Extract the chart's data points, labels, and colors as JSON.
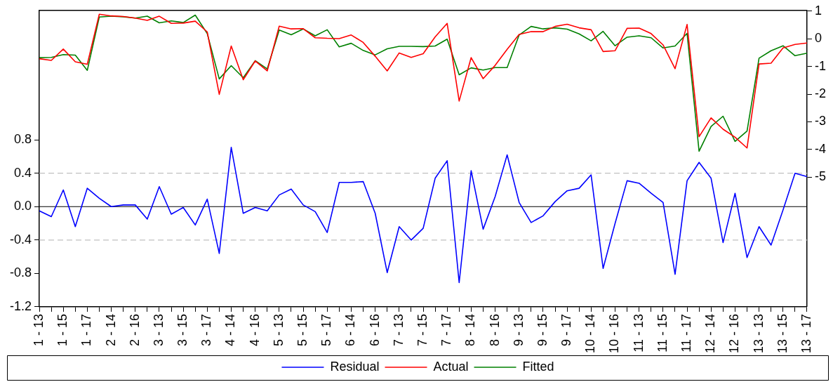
{
  "chart_data": {
    "type": "line",
    "categories": [
      "1 - 13",
      null,
      "1 - 15",
      null,
      "1 - 17",
      null,
      "2 - 14",
      null,
      "2 - 16",
      null,
      "3 - 13",
      null,
      "3 - 15",
      null,
      "3 - 17",
      null,
      "4 - 14",
      null,
      "4 - 16",
      null,
      "5 - 13",
      null,
      "5 - 15",
      null,
      "5 - 17",
      null,
      "6 - 14",
      null,
      "6 - 16",
      null,
      "7 - 13",
      null,
      "7 - 15",
      null,
      "7 - 17",
      null,
      "8 - 14",
      null,
      "8 - 16",
      null,
      "9 - 13",
      null,
      "9 - 15",
      null,
      "9 - 17",
      null,
      "10 - 14",
      null,
      "10 - 16",
      null,
      "11 - 13",
      null,
      "11 - 15",
      null,
      "11 - 17",
      null,
      "12 - 14",
      null,
      "12 - 16",
      null,
      "13 - 13",
      null,
      "13 - 15",
      null,
      "13 - 17"
    ],
    "series": [
      {
        "name": "Residual",
        "color": "#0000ff",
        "values": [
          -0.05,
          -0.12,
          0.2,
          -0.24,
          0.22,
          0.1,
          0.0,
          0.02,
          0.02,
          -0.15,
          0.24,
          -0.09,
          -0.01,
          -0.22,
          0.09,
          -0.56,
          0.71,
          -0.08,
          -0.01,
          -0.05,
          0.14,
          0.21,
          0.02,
          -0.06,
          -0.31,
          0.29,
          0.29,
          0.3,
          -0.08,
          -0.79,
          -0.24,
          -0.4,
          -0.26,
          0.34,
          0.55,
          -0.91,
          0.43,
          -0.27,
          0.12,
          0.62,
          0.05,
          -0.19,
          -0.11,
          0.06,
          0.19,
          0.22,
          0.38,
          -0.74,
          -0.2,
          0.31,
          0.28,
          0.16,
          0.05,
          -0.81,
          0.31,
          0.53,
          0.34,
          -0.43,
          0.16,
          -0.61,
          -0.24,
          -0.46,
          -0.04,
          0.4,
          0.36
        ]
      },
      {
        "name": "Actual",
        "color": "#ff0000",
        "axis": "y2",
        "values": [
          -0.72,
          -0.78,
          -0.37,
          -0.83,
          -0.92,
          0.89,
          0.83,
          0.81,
          0.75,
          0.67,
          0.82,
          0.56,
          0.57,
          0.64,
          0.25,
          -2.01,
          -0.26,
          -1.48,
          -0.8,
          -1.16,
          0.46,
          0.36,
          0.37,
          0.04,
          0.02,
          0.01,
          0.14,
          -0.13,
          -0.63,
          -1.16,
          -0.51,
          -0.67,
          -0.54,
          0.07,
          0.56,
          -2.25,
          -0.68,
          -1.44,
          -0.96,
          -0.38,
          0.16,
          0.26,
          0.26,
          0.45,
          0.53,
          0.4,
          0.33,
          -0.46,
          -0.43,
          0.38,
          0.39,
          0.19,
          -0.22,
          -1.08,
          0.52,
          -3.54,
          -2.86,
          -3.27,
          -3.56,
          -3.95,
          -0.91,
          -0.88,
          -0.33,
          -0.2,
          -0.15
        ]
      },
      {
        "name": "Fitted",
        "color": "#008000",
        "axis": "y2",
        "values": [
          -0.68,
          -0.67,
          -0.57,
          -0.59,
          -1.14,
          0.79,
          0.82,
          0.8,
          0.75,
          0.82,
          0.58,
          0.65,
          0.59,
          0.86,
          0.19,
          -1.45,
          -0.97,
          -1.41,
          -0.79,
          -1.09,
          0.32,
          0.15,
          0.36,
          0.11,
          0.33,
          -0.29,
          -0.16,
          -0.42,
          -0.58,
          -0.36,
          -0.27,
          -0.27,
          -0.28,
          -0.26,
          -0.01,
          -1.3,
          -1.05,
          -1.13,
          -1.04,
          -1.04,
          0.14,
          0.45,
          0.36,
          0.4,
          0.35,
          0.18,
          -0.07,
          0.27,
          -0.25,
          0.06,
          0.11,
          0.04,
          -0.33,
          -0.26,
          0.2,
          -4.07,
          -3.17,
          -2.8,
          -3.71,
          -3.34,
          -0.7,
          -0.43,
          -0.25,
          -0.61,
          -0.52
        ]
      }
    ],
    "ylim": [
      -1.2,
      2.35
    ],
    "yticks": [
      -1.2,
      -0.8,
      -0.4,
      {
        "value": 0,
        "label": "0.0"
      },
      0.4,
      0.8
    ],
    "y2lim": [
      -9.7,
      1.03
    ],
    "y2ticks": [
      -5,
      -4,
      -3,
      -2,
      -1,
      0,
      1
    ],
    "ref_lines": [
      {
        "axis": "y",
        "value": 0.4,
        "color": "#c0c0c0",
        "line_style": "dashed"
      },
      {
        "axis": "y",
        "value": -0.4,
        "color": "#c0c0c0",
        "line_style": "dashed"
      },
      {
        "axis": "y",
        "value": 0,
        "color": "#000000",
        "line_style": "solid"
      }
    ],
    "grid": false,
    "legend": "bottom",
    "marker": "none",
    "line_style": "solid"
  }
}
